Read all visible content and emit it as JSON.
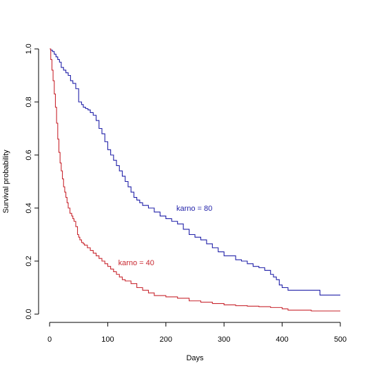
{
  "chart_data": {
    "type": "line",
    "title": "",
    "xlabel": "Days",
    "ylabel": "Survival probability",
    "xlim": [
      0,
      500
    ],
    "ylim": [
      0,
      1
    ],
    "xticks": [
      0,
      100,
      200,
      300,
      400,
      500
    ],
    "yticks": [
      0.0,
      0.2,
      0.4,
      0.6,
      0.8,
      1.0
    ],
    "ytick_labels": [
      "0.0",
      "0.2",
      "0.4",
      "0.6",
      "0.8",
      "1.0"
    ],
    "grid": false,
    "step": true,
    "series": [
      {
        "name": "karno = 80",
        "color": "#1f1fa8",
        "label_at": [
          218,
          0.4
        ],
        "x": [
          0,
          2,
          5,
          8,
          11,
          14,
          17,
          20,
          24,
          28,
          32,
          36,
          40,
          45,
          50,
          55,
          58,
          62,
          66,
          70,
          75,
          80,
          85,
          90,
          95,
          100,
          105,
          110,
          115,
          120,
          125,
          130,
          135,
          140,
          145,
          150,
          155,
          160,
          170,
          180,
          190,
          200,
          210,
          220,
          230,
          240,
          250,
          260,
          270,
          280,
          290,
          300,
          310,
          320,
          330,
          340,
          350,
          360,
          370,
          380,
          385,
          390,
          395,
          400,
          410,
          420,
          440,
          465,
          500
        ],
        "y": [
          1.0,
          0.995,
          0.99,
          0.98,
          0.97,
          0.96,
          0.95,
          0.93,
          0.92,
          0.91,
          0.9,
          0.88,
          0.87,
          0.85,
          0.8,
          0.79,
          0.78,
          0.775,
          0.77,
          0.76,
          0.75,
          0.73,
          0.7,
          0.68,
          0.65,
          0.62,
          0.6,
          0.58,
          0.56,
          0.54,
          0.52,
          0.5,
          0.48,
          0.46,
          0.44,
          0.43,
          0.42,
          0.41,
          0.4,
          0.385,
          0.37,
          0.36,
          0.35,
          0.34,
          0.32,
          0.3,
          0.29,
          0.28,
          0.265,
          0.25,
          0.235,
          0.22,
          0.22,
          0.205,
          0.2,
          0.19,
          0.18,
          0.175,
          0.165,
          0.15,
          0.14,
          0.13,
          0.11,
          0.1,
          0.09,
          0.09,
          0.09,
          0.072,
          0.072
        ]
      },
      {
        "name": "karno = 40",
        "color": "#c8262e",
        "label_at": [
          118,
          0.195
        ],
        "x": [
          0,
          2,
          4,
          6,
          8,
          10,
          12,
          14,
          16,
          18,
          20,
          22,
          24,
          26,
          28,
          30,
          32,
          35,
          38,
          40,
          42,
          45,
          48,
          50,
          52,
          55,
          58,
          60,
          65,
          70,
          75,
          80,
          85,
          90,
          95,
          100,
          105,
          110,
          115,
          120,
          125,
          130,
          140,
          150,
          160,
          170,
          180,
          200,
          220,
          240,
          260,
          280,
          300,
          320,
          340,
          360,
          380,
          400,
          410,
          450,
          500
        ],
        "y": [
          1.0,
          0.96,
          0.92,
          0.88,
          0.83,
          0.78,
          0.72,
          0.66,
          0.61,
          0.57,
          0.54,
          0.51,
          0.48,
          0.46,
          0.44,
          0.42,
          0.4,
          0.38,
          0.37,
          0.36,
          0.35,
          0.33,
          0.3,
          0.29,
          0.28,
          0.27,
          0.265,
          0.26,
          0.25,
          0.24,
          0.23,
          0.22,
          0.21,
          0.2,
          0.19,
          0.18,
          0.17,
          0.16,
          0.15,
          0.14,
          0.13,
          0.125,
          0.115,
          0.1,
          0.09,
          0.08,
          0.07,
          0.065,
          0.06,
          0.05,
          0.045,
          0.04,
          0.035,
          0.032,
          0.03,
          0.028,
          0.025,
          0.02,
          0.015,
          0.012,
          0.012
        ]
      }
    ]
  }
}
